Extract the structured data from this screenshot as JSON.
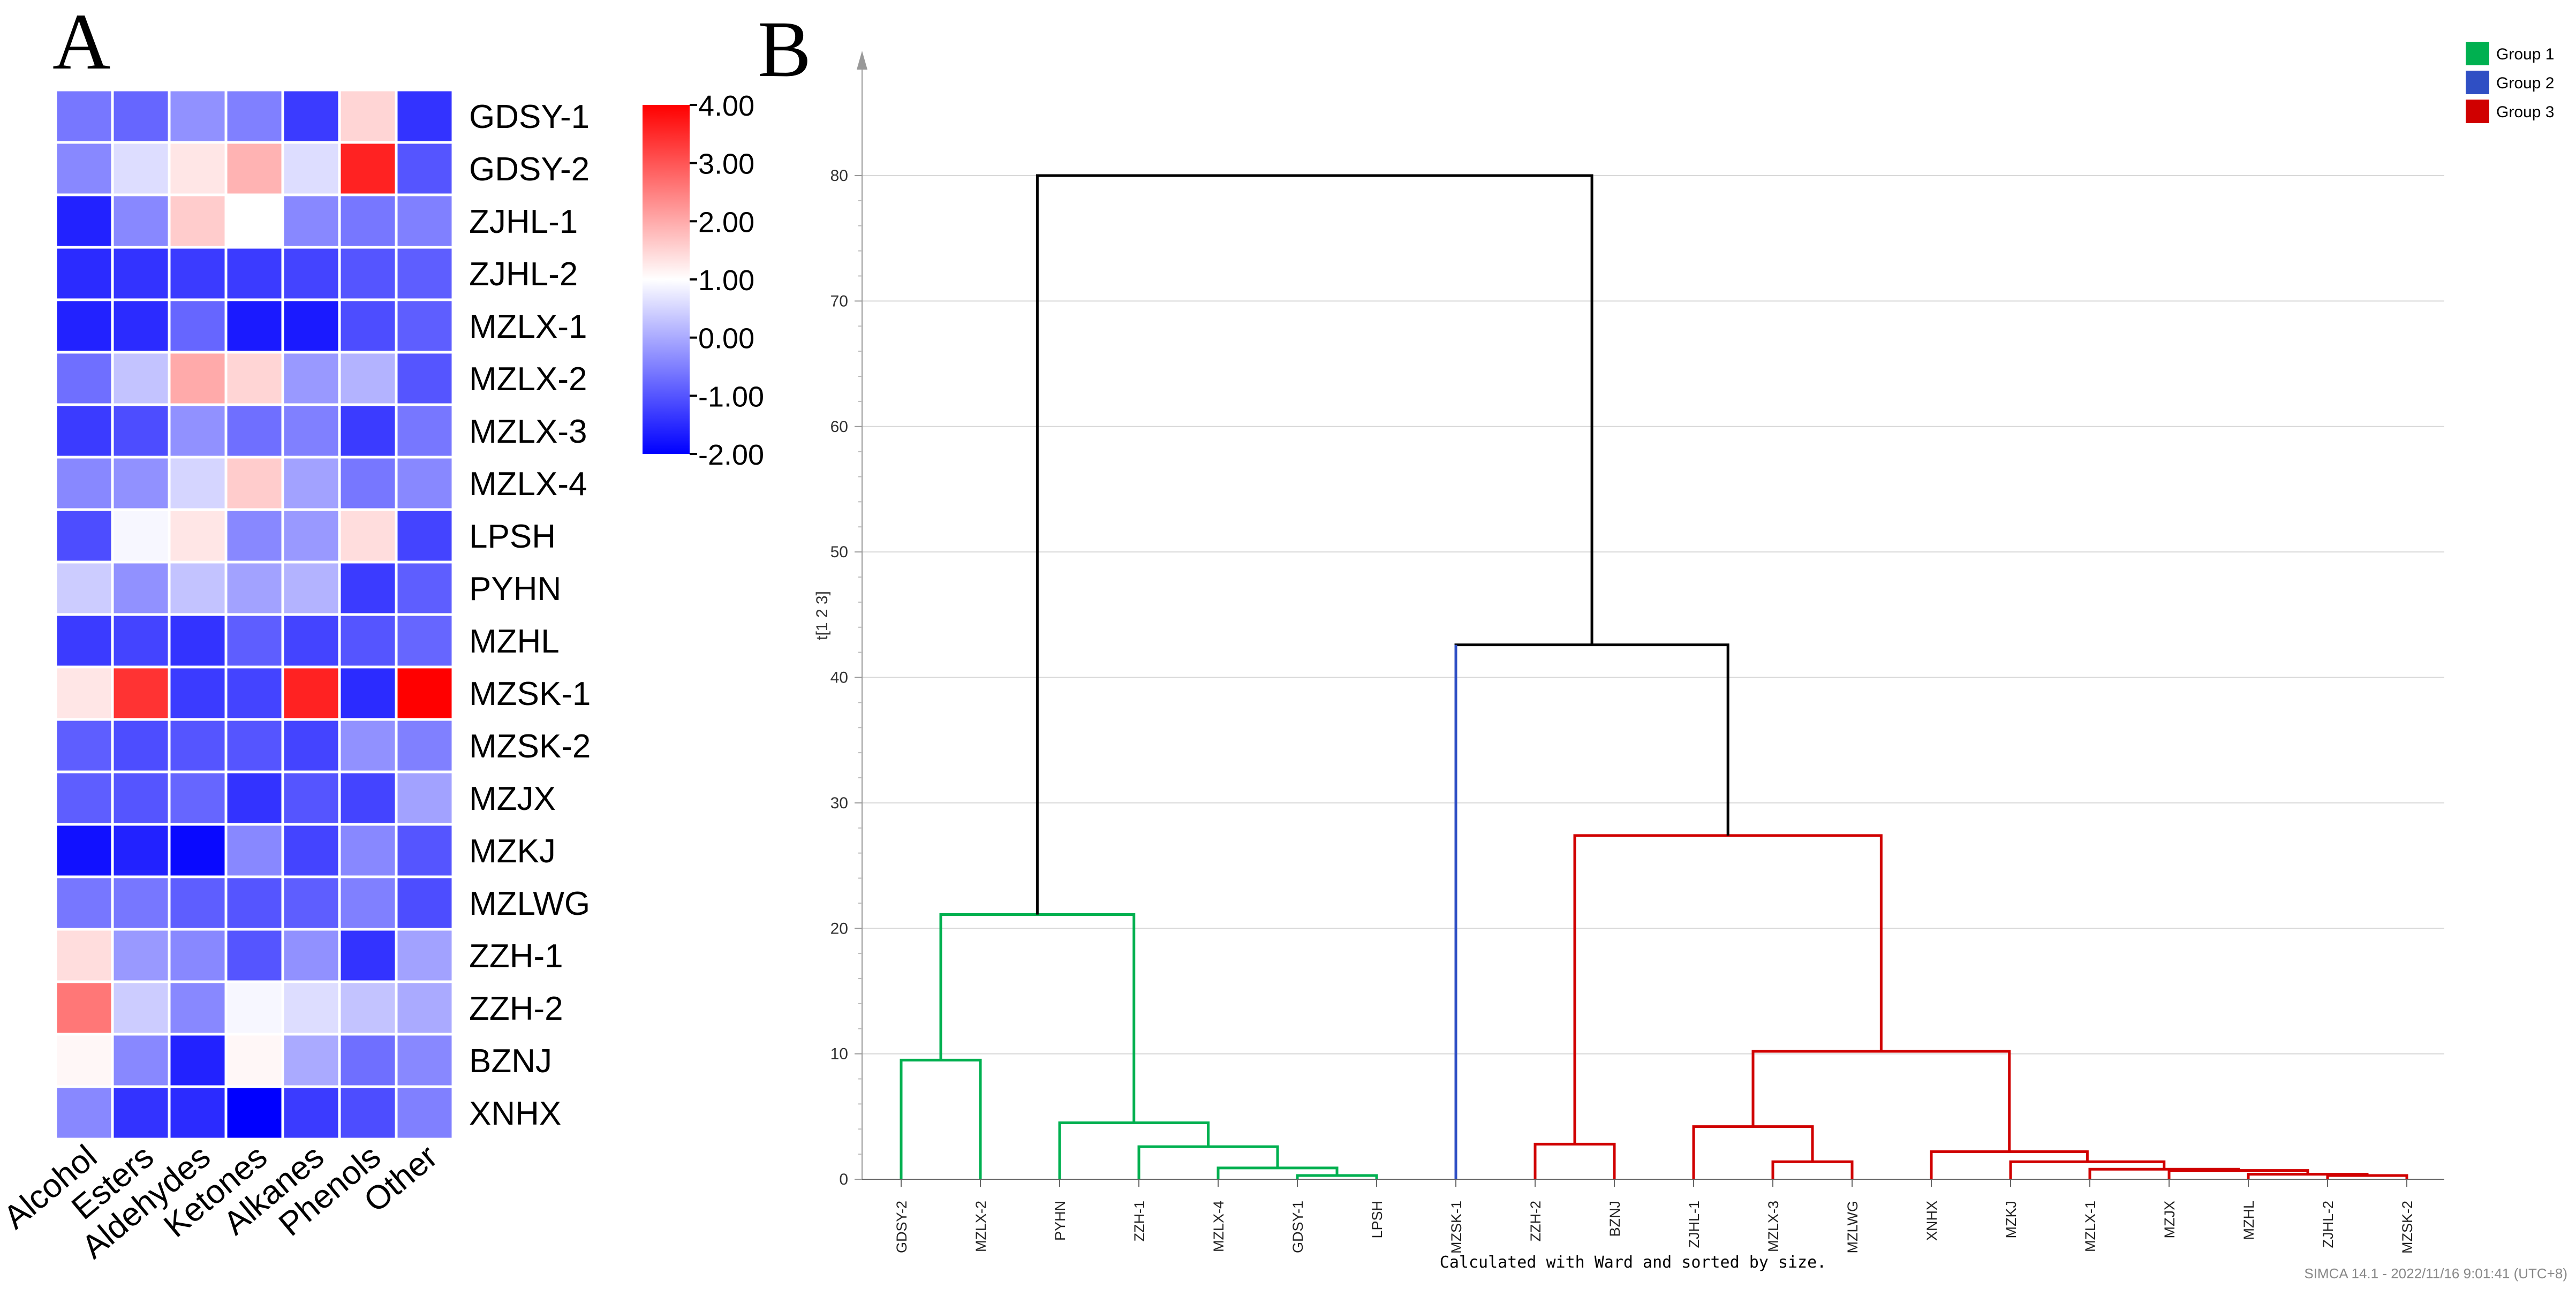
{
  "colors": {
    "heat_low": "#0000ff",
    "heat_mid": "#ffffff",
    "heat_high": "#ff0000",
    "group1": "#00b050",
    "group2": "#2f4fc4",
    "group3": "#d00000",
    "root": "#000000",
    "grid": "#d8d8d8"
  },
  "chart_data": [
    {
      "type": "heatmap",
      "panel_label": "A",
      "rows": [
        "GDSY-1",
        "GDSY-2",
        "ZJHL-1",
        "ZJHL-2",
        "MZLX-1",
        "MZLX-2",
        "MZLX-3",
        "MZLX-4",
        "LPSH",
        "PYHN",
        "MZHL",
        "MZSK-1",
        "MZSK-2",
        "MZJX",
        "MZKJ",
        "MZLWG",
        "ZZH-1",
        "ZZH-2",
        "BZNJ",
        "XNHX"
      ],
      "columns": [
        "Alcohol",
        "Esters",
        "Aldehydes",
        "Ketones",
        "Alkanes",
        "Phenols",
        "Other"
      ],
      "values": [
        [
          -0.6,
          -0.8,
          -0.3,
          -0.5,
          -1.3,
          1.5,
          -1.4
        ],
        [
          -0.4,
          0.6,
          1.3,
          1.9,
          0.6,
          3.6,
          -1.0
        ],
        [
          -1.6,
          -0.4,
          1.6,
          1.0,
          -0.4,
          -0.6,
          -0.5
        ],
        [
          -1.5,
          -1.4,
          -1.3,
          -1.3,
          -1.2,
          -1.0,
          -0.9
        ],
        [
          -1.6,
          -1.5,
          -0.8,
          -1.7,
          -1.7,
          -1.1,
          -0.9
        ],
        [
          -0.7,
          0.3,
          2.0,
          1.5,
          -0.2,
          0.1,
          -1.0
        ],
        [
          -1.3,
          -1.1,
          -0.3,
          -0.7,
          -0.5,
          -1.3,
          -0.6
        ],
        [
          -0.4,
          -0.3,
          0.5,
          1.6,
          -0.1,
          -0.6,
          -0.4
        ],
        [
          -1.1,
          0.9,
          1.3,
          -0.4,
          -0.2,
          1.4,
          -1.2
        ],
        [
          0.4,
          -0.3,
          0.3,
          -0.1,
          0.1,
          -1.3,
          -0.9
        ],
        [
          -1.3,
          -1.2,
          -1.4,
          -0.9,
          -1.2,
          -1.0,
          -0.8
        ],
        [
          1.3,
          3.4,
          -1.3,
          -1.2,
          3.6,
          -1.5,
          4.0
        ],
        [
          -0.9,
          -1.1,
          -1.0,
          -1.0,
          -1.2,
          -0.3,
          -0.5
        ],
        [
          -0.9,
          -1.0,
          -0.8,
          -1.4,
          -1.0,
          -1.2,
          -0.1
        ],
        [
          -1.8,
          -1.6,
          -1.9,
          -0.4,
          -1.2,
          -0.4,
          -1.0
        ],
        [
          -0.6,
          -0.6,
          -0.9,
          -1.0,
          -0.9,
          -0.5,
          -1.1
        ],
        [
          1.4,
          -0.2,
          -0.4,
          -1.0,
          -0.3,
          -1.4,
          -0.1
        ],
        [
          2.6,
          0.4,
          -0.4,
          0.9,
          0.6,
          0.3,
          0.0
        ],
        [
          1.1,
          -0.4,
          -1.6,
          1.1,
          0.0,
          -0.7,
          -0.4
        ],
        [
          -0.4,
          -1.4,
          -1.5,
          -2.0,
          -1.3,
          -1.1,
          -0.5
        ]
      ],
      "colorbar": {
        "min": -2.0,
        "max": 4.0,
        "ticks": [
          "4.00",
          "3.00",
          "2.00",
          "1.00",
          "0.00",
          "-1.00",
          "-2.00"
        ]
      }
    },
    {
      "type": "dendrogram",
      "panel_label": "B",
      "ylabel": "t[1 2 3]",
      "ylim": [
        0,
        85
      ],
      "yticks": [
        "0",
        "10",
        "20",
        "30",
        "40",
        "50",
        "60",
        "70",
        "80"
      ],
      "leaves": [
        "GDSY-2",
        "MZLX-2",
        "PYHN",
        "ZZH-1",
        "MZLX-4",
        "GDSY-1",
        "LPSH",
        "MZSK-1",
        "ZZH-2",
        "BZNJ",
        "ZJHL-1",
        "MZLX-3",
        "MZLWG",
        "XNHX",
        "MZKJ",
        "MZLX-1",
        "MZJX",
        "MZHL",
        "ZJHL-2",
        "MZSK-2"
      ],
      "leaf_groups": [
        1,
        1,
        1,
        1,
        1,
        1,
        1,
        2,
        3,
        3,
        3,
        3,
        3,
        3,
        3,
        3,
        3,
        3,
        3,
        3
      ],
      "merges": [
        {
          "a": 0,
          "b": 1,
          "height": 9.5,
          "group": 1
        },
        {
          "a": 5,
          "b": 6,
          "height": 0.3,
          "group": 1
        },
        {
          "a": 4,
          "b": 21,
          "height": 0.9,
          "group": 1
        },
        {
          "a": 3,
          "b": 22,
          "height": 2.6,
          "group": 1
        },
        {
          "a": 2,
          "b": 23,
          "height": 4.5,
          "group": 1
        },
        {
          "a": 20,
          "b": 24,
          "height": 21.1,
          "group": 1
        },
        {
          "a": 8,
          "b": 9,
          "height": 2.8,
          "group": 3
        },
        {
          "a": 11,
          "b": 12,
          "height": 1.4,
          "group": 3
        },
        {
          "a": 10,
          "b": 27,
          "height": 4.2,
          "group": 3
        },
        {
          "a": 18,
          "b": 19,
          "height": 0.3,
          "group": 3
        },
        {
          "a": 17,
          "b": 29,
          "height": 0.4,
          "group": 3
        },
        {
          "a": 16,
          "b": 30,
          "height": 0.7,
          "group": 3
        },
        {
          "a": 15,
          "b": 31,
          "height": 0.8,
          "group": 3
        },
        {
          "a": 14,
          "b": 32,
          "height": 1.4,
          "group": 3
        },
        {
          "a": 13,
          "b": 33,
          "height": 2.2,
          "group": 3
        },
        {
          "a": 28,
          "b": 34,
          "height": 10.2,
          "group": 3
        },
        {
          "a": 26,
          "b": 35,
          "height": 27.4,
          "group": 3
        },
        {
          "a": 7,
          "b": 36,
          "height": 42.6,
          "group": 0
        },
        {
          "a": 25,
          "b": 37,
          "height": 80.0,
          "group": 0
        }
      ],
      "legend": [
        {
          "label": "Group 1",
          "color": "#00b050"
        },
        {
          "label": "Group 2",
          "color": "#2f4fc4"
        },
        {
          "label": "Group 3",
          "color": "#d00000"
        }
      ],
      "footnote": "Calculated with Ward and sorted by size.",
      "software_stamp": "SIMCA 14.1 - 2022/11/16 9:01:41 (UTC+8)"
    }
  ]
}
